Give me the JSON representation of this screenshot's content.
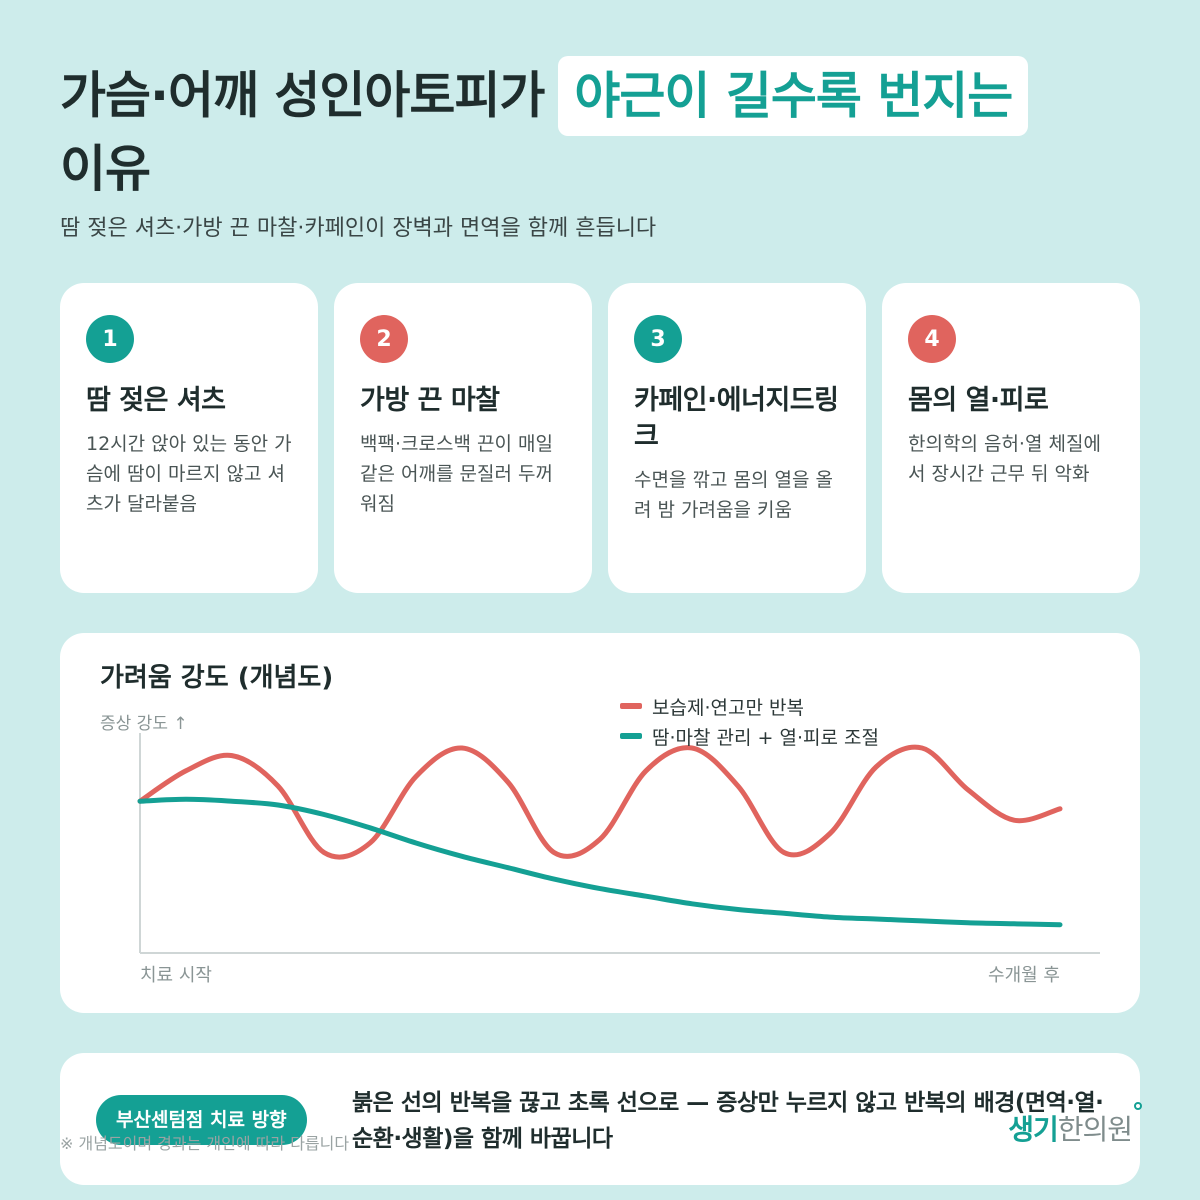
{
  "header": {
    "title_line1": "가슴·어깨 성인아토피가",
    "title_highlight": "야근이 길수록 번지는",
    "title_line2": "이유",
    "subtitle": "땀 젖은 셔츠·가방 끈 마찰·카페인이 장벽과 면역을 함께 흔듭니다"
  },
  "cards": [
    {
      "number": "1",
      "title": "땀 젖은 셔츠",
      "text": "12시간 앉아 있는 동안 가슴에 땀이 마르지 않고 셔츠가 달라붙음",
      "color": "#14a094"
    },
    {
      "number": "2",
      "title": "가방 끈 마찰",
      "text": "백팩·크로스백 끈이 매일 같은 어깨를 문질러 두꺼워짐",
      "color": "#e0645e"
    },
    {
      "number": "3",
      "title": "카페인·에너지드링크",
      "text": "수면을 깎고 몸의 열을 올려 밤 가려움을 키움",
      "color": "#14a094"
    },
    {
      "number": "4",
      "title": "몸의 열·피로",
      "text": "한의학의 음허·열 체질에서 장시간 근무 뒤 악화",
      "color": "#e0645e"
    }
  ],
  "chart": {
    "title": "가려움 강도 (개념도)",
    "y_label": "증상 강도 ↑",
    "x_start": "치료 시작",
    "x_end": "수개월 후"
  },
  "chart_data": {
    "type": "line",
    "title": "가려움 강도 (개념도)",
    "ylabel": "증상 강도 ↑",
    "x_range": [
      "치료 시작",
      "수개월 후"
    ],
    "ylim": [
      0,
      1
    ],
    "x": [
      0,
      0.05,
      0.1,
      0.15,
      0.2,
      0.25,
      0.3,
      0.35,
      0.4,
      0.45,
      0.5,
      0.55,
      0.6,
      0.65,
      0.7,
      0.75,
      0.8,
      0.85,
      0.9,
      0.95,
      1.0
    ],
    "series": [
      {
        "name": "보습제·연고만 반복",
        "color": "#e0645e",
        "values": [
          0.72,
          0.88,
          0.96,
          0.8,
          0.45,
          0.5,
          0.85,
          1.0,
          0.82,
          0.45,
          0.52,
          0.88,
          1.0,
          0.8,
          0.45,
          0.55,
          0.9,
          1.0,
          0.78,
          0.62,
          0.68
        ]
      },
      {
        "name": "땀·마찰 관리 + 열·피로 조절",
        "color": "#14a094",
        "values": [
          0.72,
          0.73,
          0.72,
          0.7,
          0.65,
          0.58,
          0.5,
          0.43,
          0.37,
          0.31,
          0.26,
          0.22,
          0.18,
          0.15,
          0.13,
          0.11,
          0.1,
          0.09,
          0.08,
          0.075,
          0.07
        ]
      }
    ],
    "grid": false,
    "legend": "top-right"
  },
  "bottom": {
    "badge": "부산센텀점 치료 방향",
    "text": "붉은 선의 반복을 끊고 초록 선으로 — 증상만 누르지 않고 반복의 배경(면역·열·순환·생활)을 함께 바꿉니다",
    "note": "※ 개념도이며 경과는 개인에 따라 다릅니다",
    "brand_part1": "생기",
    "brand_part2": "한의원"
  }
}
